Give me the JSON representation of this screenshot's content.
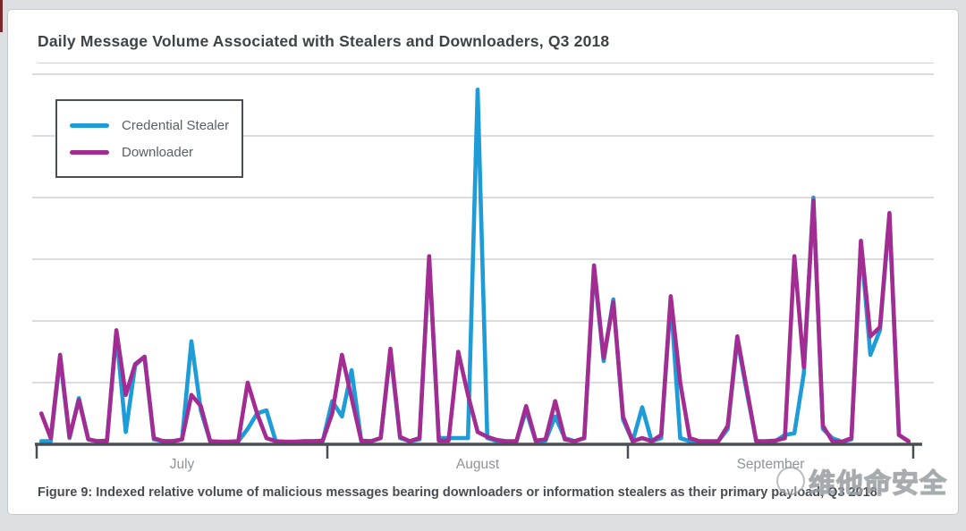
{
  "card": {
    "title": "Daily Message Volume Associated with Stealers and Downloaders, Q3 2018",
    "caption": "Figure 9: Indexed relative volume of malicious messages bearing downloaders or information stealers as their primary payload, Q3 2018"
  },
  "watermark": {
    "text": "维他命安全"
  },
  "colors": {
    "credential_stealer": "#1E9CD7",
    "downloader": "#A32C93",
    "gridline": "#c4c7ca",
    "axis": "#4a4e52"
  },
  "chart_data": {
    "type": "line",
    "title": "Daily Message Volume Associated with Stealers and Downloaders, Q3 2018",
    "xlabel": "",
    "ylabel": "",
    "y_axis_labels_shown": false,
    "ylim": [
      0,
      6.2
    ],
    "grid": true,
    "gridline_values": [
      1,
      2,
      3,
      4,
      5,
      6
    ],
    "legend_position": "top-left",
    "months": [
      {
        "label": "July",
        "days": 31
      },
      {
        "label": "August",
        "days": 31
      },
      {
        "label": "September",
        "days": 30
      }
    ],
    "series": [
      {
        "name": "Credential Stealer",
        "color": "#1E9CD7",
        "values": [
          0.05,
          0.05,
          1.4,
          0.1,
          0.75,
          0.08,
          0.05,
          0.05,
          1.8,
          0.2,
          1.28,
          1.42,
          0.08,
          0.05,
          0.05,
          0.08,
          1.67,
          0.55,
          0.05,
          0.04,
          0.04,
          0.05,
          0.25,
          0.5,
          0.55,
          0.05,
          0.04,
          0.04,
          0.05,
          0.05,
          0.05,
          0.7,
          0.45,
          1.2,
          0.05,
          0.05,
          0.1,
          1.5,
          0.1,
          0.05,
          0.08,
          3.0,
          0.1,
          0.1,
          0.1,
          0.1,
          5.75,
          0.1,
          0.05,
          0.04,
          0.05,
          0.55,
          0.05,
          0.06,
          0.45,
          0.1,
          0.05,
          0.1,
          2.85,
          1.35,
          2.35,
          0.4,
          0.05,
          0.6,
          0.05,
          0.1,
          2.35,
          0.1,
          0.05,
          0.05,
          0.04,
          0.05,
          0.25,
          1.7,
          0.85,
          0.05,
          0.04,
          0.05,
          0.15,
          0.18,
          1.15,
          4.0,
          0.25,
          0.1,
          0.04,
          0.08,
          3.25,
          1.45,
          1.85,
          3.7,
          0.15,
          0.05
        ]
      },
      {
        "name": "Downloader",
        "color": "#A32C93",
        "values": [
          0.5,
          0.1,
          1.45,
          0.12,
          0.72,
          0.08,
          0.05,
          0.06,
          1.85,
          0.8,
          1.3,
          1.42,
          0.1,
          0.05,
          0.05,
          0.08,
          0.8,
          0.62,
          0.05,
          0.04,
          0.04,
          0.05,
          1.0,
          0.5,
          0.1,
          0.05,
          0.04,
          0.04,
          0.05,
          0.05,
          0.06,
          0.5,
          1.45,
          0.75,
          0.06,
          0.05,
          0.1,
          1.55,
          0.12,
          0.05,
          0.1,
          3.05,
          0.06,
          0.06,
          1.5,
          0.8,
          0.2,
          0.12,
          0.07,
          0.05,
          0.05,
          0.62,
          0.06,
          0.08,
          0.7,
          0.08,
          0.05,
          0.1,
          2.9,
          1.4,
          2.3,
          0.45,
          0.05,
          0.1,
          0.05,
          0.15,
          2.4,
          1.0,
          0.1,
          0.05,
          0.05,
          0.05,
          0.3,
          1.75,
          0.9,
          0.05,
          0.05,
          0.06,
          0.1,
          3.05,
          1.25,
          3.95,
          0.3,
          0.05,
          0.04,
          0.1,
          3.3,
          1.75,
          1.9,
          3.75,
          0.15,
          0.05
        ]
      }
    ]
  }
}
